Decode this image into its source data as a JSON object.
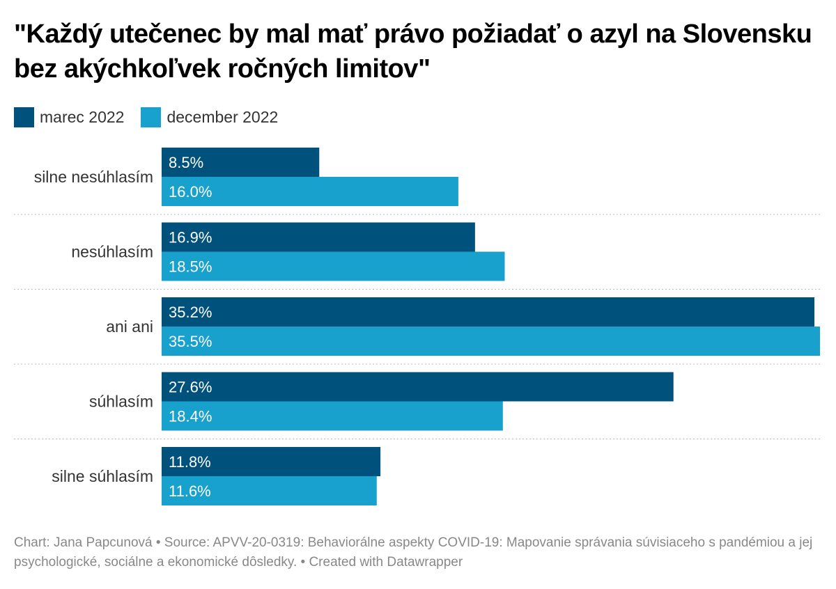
{
  "chart_data": {
    "type": "bar",
    "orientation": "horizontal",
    "title": "\"Každý utečenec by mal mať právo požiadať o azyl na Slovensku bez akýchkoľvek ročných limitov\"",
    "categories": [
      "silne nesúhlasím",
      "nesúhlasím",
      "ani ani",
      "súhlasím",
      "silne súhlasím"
    ],
    "series": [
      {
        "name": "marec 2022",
        "color": "#00527c",
        "values": [
          8.5,
          16.9,
          35.2,
          27.6,
          11.8
        ]
      },
      {
        "name": "december 2022",
        "color": "#18a1cd",
        "values": [
          16.0,
          18.5,
          35.5,
          18.4,
          11.6
        ]
      }
    ],
    "value_format": "percent_1dp",
    "xlim": [
      0,
      35.5
    ],
    "legend_position": "top-left",
    "grid": false,
    "group_separators": "dotted"
  },
  "footer": "Chart: Jana Papcunová • Source: APVV-20-0319: Behaviorálne aspekty COVID-19: Mapovanie správania súvisiaceho s pandémiou a jej psychologické, sociálne a ekonomické dôsledky. • Created with Datawrapper"
}
